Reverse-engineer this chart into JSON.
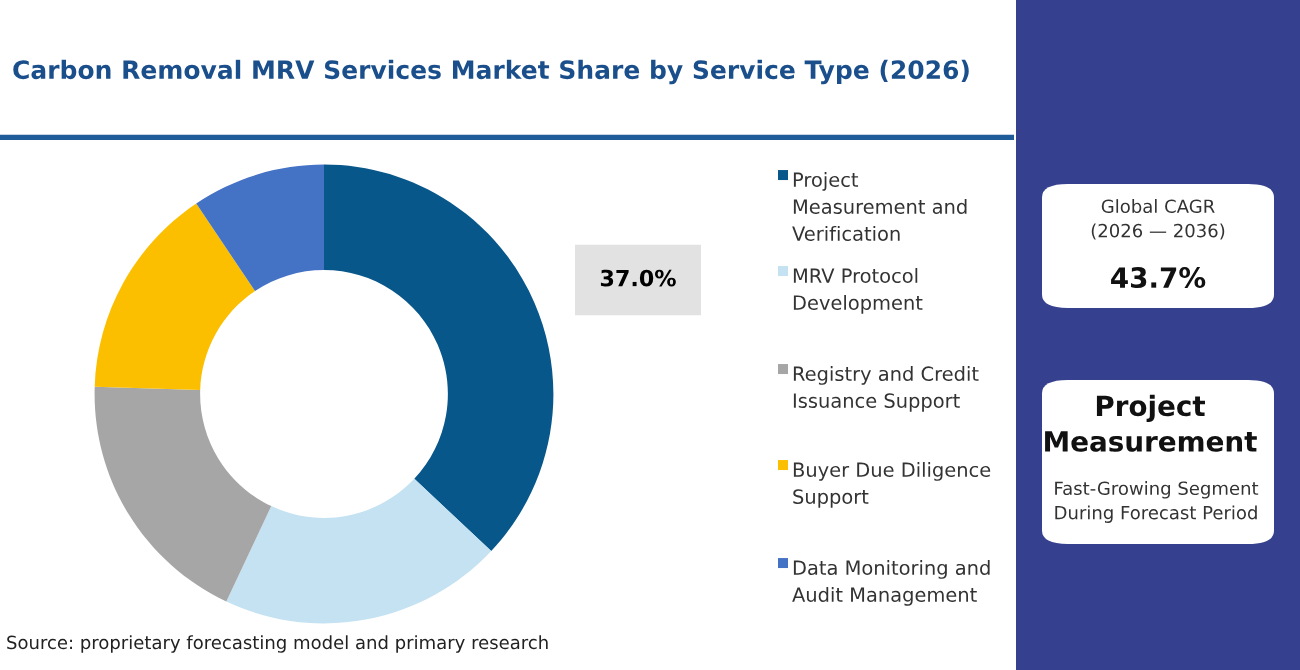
{
  "chart_data": {
    "type": "donut",
    "title": "Carbon Removal MRV Services Market Share by Service Type (2026)",
    "categories": [
      "Project\nMeasurement and\nVerification",
      "MRV Protocol\nDevelopment",
      "Registry and Credit\nIssuance Support",
      "Buyer Due Diligence\nSupport",
      "Data Monitoring and\nAudit Management"
    ],
    "values": [
      37.0,
      20.0,
      18.5,
      15.1,
      9.4
    ],
    "colors": [
      "#08578a",
      "#c4e2f2",
      "#a6a6a6",
      "#fbbf00",
      "#4472c4"
    ],
    "value_labels": [
      "37.0%",
      null,
      null,
      null,
      null
    ],
    "legend": "right",
    "annotations": [
      "Source: proprietary forecasting model and primary research",
      "Global CAGR\n(2026 — 2036)",
      "43.7%",
      "Project\nMeasurement",
      "Fast-Growing Segment\nDuring Forecast Period"
    ]
  }
}
